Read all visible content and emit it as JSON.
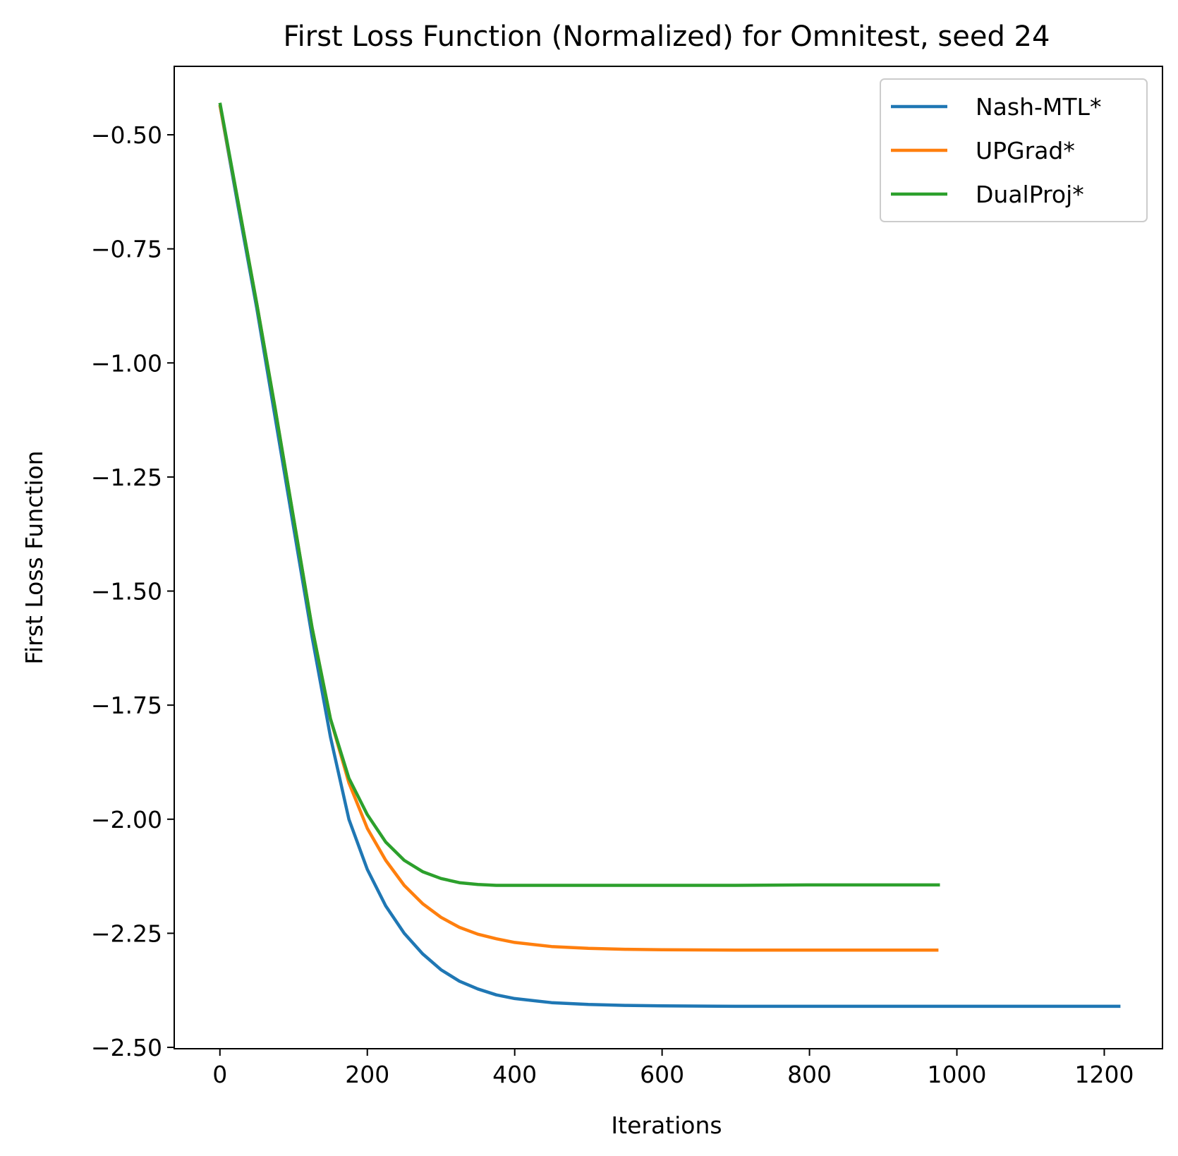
{
  "chart_data": {
    "type": "line",
    "title": "First Loss Function (Normalized) for Omnitest, seed 24",
    "xlabel": "Iterations",
    "ylabel": "First Loss Function",
    "xlim": [
      -62,
      1279
    ],
    "ylim": [
      -2.503,
      -0.35
    ],
    "x_ticks": [
      0,
      200,
      400,
      600,
      800,
      1000,
      1200
    ],
    "x_tick_labels": [
      "0",
      "200",
      "400",
      "600",
      "800",
      "1000",
      "1200"
    ],
    "y_ticks": [
      -0.5,
      -0.75,
      -1.0,
      -1.25,
      -1.5,
      -1.75,
      -2.0,
      -2.25,
      -2.5
    ],
    "y_tick_labels": [
      "−0.50",
      "−0.75",
      "−1.00",
      "−1.25",
      "−1.50",
      "−1.75",
      "−2.00",
      "−2.25",
      "−2.50"
    ],
    "grid": false,
    "legend_position": "top-right",
    "series": [
      {
        "name": "Nash-MTL*",
        "color": "#1f77b4",
        "x": [
          0,
          25,
          50,
          75,
          100,
          125,
          150,
          175,
          200,
          225,
          250,
          275,
          300,
          325,
          350,
          375,
          400,
          450,
          500,
          550,
          600,
          700,
          800,
          900,
          1000,
          1100,
          1222
        ],
        "y": [
          -0.435,
          -0.66,
          -0.88,
          -1.12,
          -1.36,
          -1.6,
          -1.82,
          -2.0,
          -2.11,
          -2.19,
          -2.25,
          -2.295,
          -2.33,
          -2.355,
          -2.372,
          -2.385,
          -2.393,
          -2.402,
          -2.406,
          -2.408,
          -2.409,
          -2.41,
          -2.41,
          -2.41,
          -2.41,
          -2.41,
          -2.41
        ]
      },
      {
        "name": "UPGrad*",
        "color": "#ff7f0e",
        "x": [
          0,
          25,
          50,
          75,
          100,
          125,
          150,
          175,
          200,
          225,
          250,
          275,
          300,
          325,
          350,
          375,
          400,
          450,
          500,
          550,
          600,
          700,
          800,
          900,
          975
        ],
        "y": [
          -0.435,
          -0.65,
          -0.87,
          -1.1,
          -1.34,
          -1.58,
          -1.78,
          -1.92,
          -2.02,
          -2.09,
          -2.145,
          -2.185,
          -2.215,
          -2.237,
          -2.252,
          -2.262,
          -2.27,
          -2.279,
          -2.283,
          -2.285,
          -2.286,
          -2.287,
          -2.287,
          -2.287,
          -2.287
        ]
      },
      {
        "name": "DualProj*",
        "color": "#2ca02c",
        "x": [
          0,
          25,
          50,
          75,
          100,
          125,
          150,
          175,
          200,
          225,
          250,
          275,
          300,
          325,
          350,
          375,
          400,
          450,
          500,
          600,
          700,
          800,
          900,
          977
        ],
        "y": [
          -0.43,
          -0.65,
          -0.87,
          -1.1,
          -1.34,
          -1.58,
          -1.78,
          -1.91,
          -1.99,
          -2.05,
          -2.09,
          -2.115,
          -2.13,
          -2.139,
          -2.143,
          -2.145,
          -2.145,
          -2.145,
          -2.145,
          -2.145,
          -2.145,
          -2.144,
          -2.144,
          -2.144
        ]
      }
    ]
  }
}
